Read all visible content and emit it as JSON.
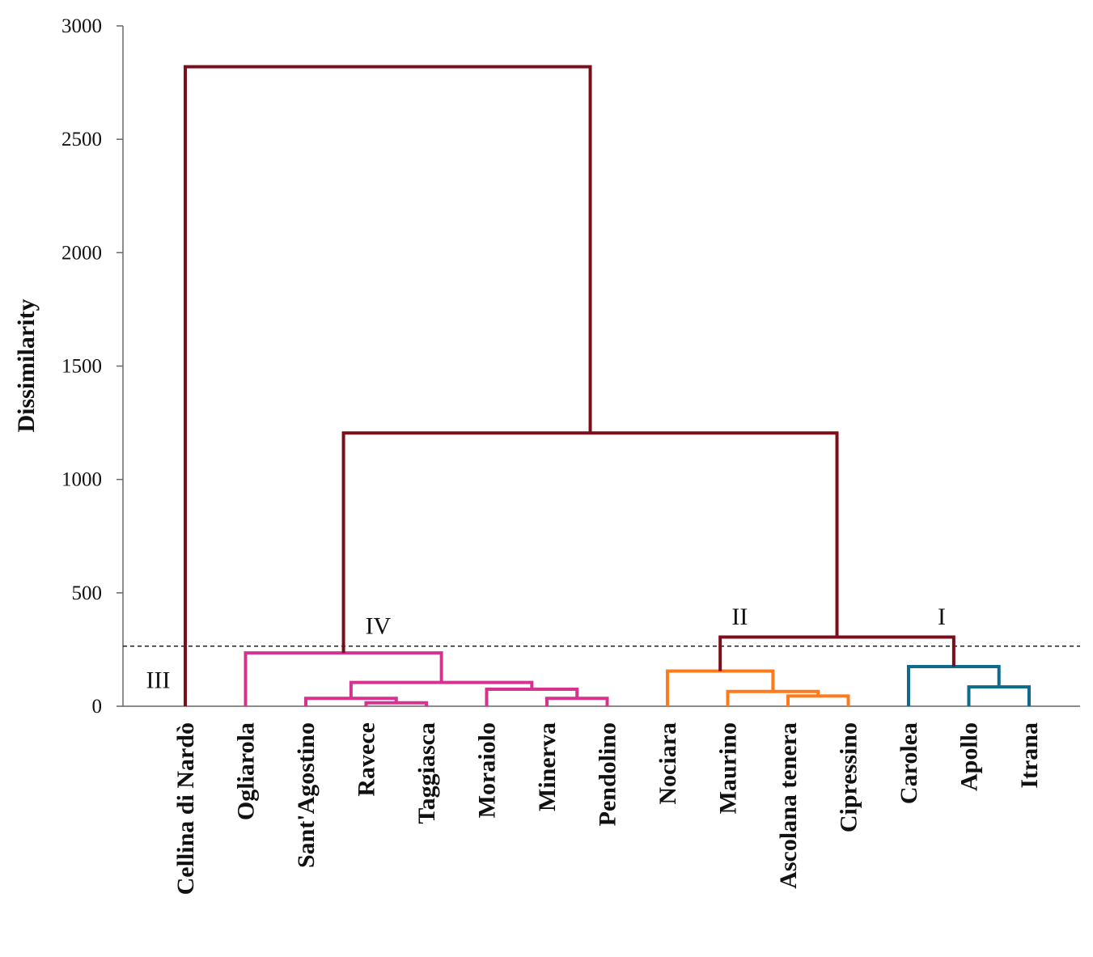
{
  "chart_data": {
    "type": "dendrogram",
    "ylabel": "Dissimilarity",
    "ylim": [
      0,
      3000
    ],
    "yticks": [
      0,
      500,
      1000,
      1500,
      2000,
      2500,
      3000
    ],
    "ytick_labels": [
      "0",
      "500",
      "1000",
      "1500",
      "2000",
      "2500",
      "3000"
    ],
    "threshold": 265,
    "leaves": [
      "Cellina di Nardò",
      "Ogliarola",
      "Sant'Agostino",
      "Ravece",
      "Taggiasca",
      "Moraiolo",
      "Minerva",
      "Pendolino",
      "Nociara",
      "Maurino",
      "Ascolana tenera",
      "Cipressino",
      "Carolea",
      "Apollo",
      "Itrana"
    ],
    "colors": {
      "root": "#7a0f1c",
      "IV": "#d4348f",
      "II": "#ff7a1a",
      "I": "#0f6b8c",
      "threshold": "#222222",
      "axis": "#666666"
    },
    "groups": [
      {
        "label": "IV",
        "color_key": "IV",
        "x_leaf": 3.2,
        "y": 320
      },
      {
        "label": "II",
        "color_key": "II",
        "x_leaf": 9.2,
        "y": 360
      },
      {
        "label": "I",
        "color_key": "I",
        "x_leaf": 12.55,
        "y": 360
      },
      {
        "label": "III",
        "color_key": "root",
        "x_leaf": -0.45,
        "y": 80
      }
    ],
    "merges": [
      {
        "id": "m1",
        "a": "Ravece",
        "b": "Taggiasca",
        "height": 15,
        "color": "IV"
      },
      {
        "id": "m2",
        "a": "Sant'Agostino",
        "b": "m1",
        "height": 35,
        "color": "IV"
      },
      {
        "id": "m3",
        "a": "Minerva",
        "b": "Pendolino",
        "height": 35,
        "color": "IV"
      },
      {
        "id": "m4",
        "a": "Moraiolo",
        "b": "m3",
        "height": 75,
        "color": "IV"
      },
      {
        "id": "m5",
        "a": "m2",
        "b": "m4",
        "height": 105,
        "color": "IV"
      },
      {
        "id": "m6",
        "a": "Ogliarola",
        "b": "m5",
        "height": 235,
        "color": "IV"
      },
      {
        "id": "m7",
        "a": "Ascolana tenera",
        "b": "Cipressino",
        "height": 45,
        "color": "II"
      },
      {
        "id": "m8",
        "a": "Maurino",
        "b": "m7",
        "height": 65,
        "color": "II"
      },
      {
        "id": "m9",
        "a": "Nociara",
        "b": "m8",
        "height": 155,
        "color": "II"
      },
      {
        "id": "m10",
        "a": "Apollo",
        "b": "Itrana",
        "height": 85,
        "color": "I"
      },
      {
        "id": "m11",
        "a": "Carolea",
        "b": "m10",
        "height": 175,
        "color": "I"
      },
      {
        "id": "m12",
        "a": "m9",
        "b": "m11",
        "height": 305,
        "color": "root"
      },
      {
        "id": "m13",
        "a": "m6",
        "b": "m12",
        "height": 1205,
        "color": "root"
      },
      {
        "id": "m14",
        "a": "Cellina di Nardò",
        "b": "m13",
        "height": 2820,
        "color": "root"
      }
    ]
  }
}
